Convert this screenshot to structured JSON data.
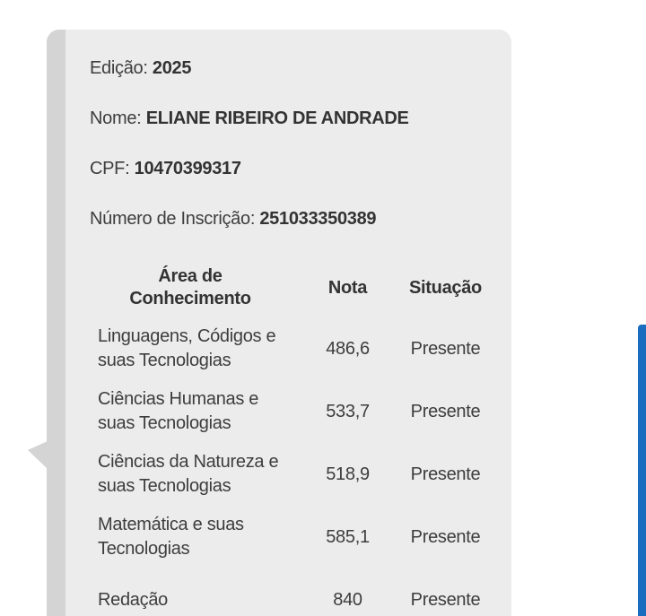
{
  "card": {
    "background": "#ececec",
    "stripe_color": "#d4d4d4",
    "info_lines": [
      {
        "label": "Edição:",
        "value": "2025"
      },
      {
        "label": "Nome:",
        "value": "ELIANE RIBEIRO DE ANDRADE"
      },
      {
        "label": "CPF:",
        "value": "10470399317"
      },
      {
        "label": "Número de Inscrição:",
        "value": "251033350389"
      }
    ],
    "table": {
      "headers": [
        "Área de Conhecimento",
        "Nota",
        "Situação"
      ],
      "rows": [
        {
          "area": "Linguagens, Códigos e suas Tecnologias",
          "nota": "486,6",
          "situacao": "Presente"
        },
        {
          "area": "Ciências Humanas e suas Tecnologias",
          "nota": "533,7",
          "situacao": "Presente"
        },
        {
          "area": "Ciências da Natureza e suas Tecnologias",
          "nota": "518,9",
          "situacao": "Presente"
        },
        {
          "area": "Matemática e suas Tecnologias",
          "nota": "585,1",
          "situacao": "Presente"
        },
        {
          "area": "Redação",
          "nota": "840",
          "situacao": "Presente"
        }
      ]
    }
  },
  "scrollbar": {
    "color": "#1a6cbe"
  }
}
